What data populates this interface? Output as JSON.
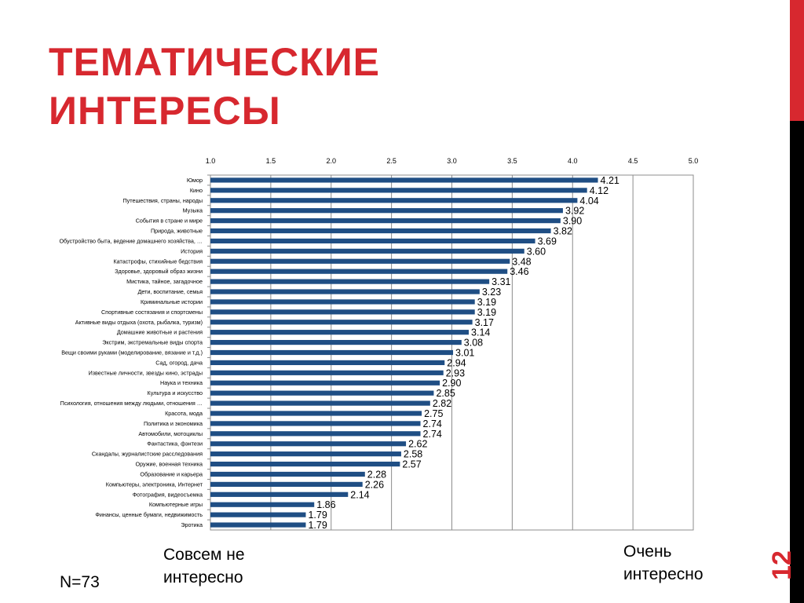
{
  "slide": {
    "title_line1": "ТЕМАТИЧЕСКИЕ",
    "title_line2": "ИНТЕРЕСЫ",
    "page_number": "12",
    "caption_left": [
      "Совсем не",
      "интересно"
    ],
    "caption_right": [
      "Очень",
      "интересно"
    ],
    "sample": "N=73"
  },
  "colors": {
    "accent": "#d7282f",
    "bar": "#1f4e84",
    "sidebar_dark": "#000000"
  },
  "chart_data": {
    "type": "bar",
    "orientation": "horizontal",
    "xlim": [
      1.0,
      5.0
    ],
    "x_ticks": [
      "1.0",
      "1.5",
      "2.0",
      "2.5",
      "3.0",
      "3.5",
      "4.0",
      "4.5",
      "5.0"
    ],
    "x_tick_values": [
      1.0,
      1.5,
      2.0,
      2.5,
      3.0,
      3.5,
      4.0,
      4.5,
      5.0
    ],
    "x_axis_position": "top",
    "grid": true,
    "categories": [
      "Юмор",
      "Кино",
      "Путешествия, страны, народы",
      "Музыка",
      "События в стране и мире",
      "Природа, животные",
      "Обустройство быта, ведение домашнего хозяйства, …",
      "История",
      "Катастрофы, стихийные бедствия",
      "Здоровье, здоровый образ жизни",
      "Мистика, тайное, загадочное",
      "Дети, воспитание, семья",
      "Криминальные истории",
      "Спортивные состязания и спортсмены",
      "Активные виды отдыха (охота, рыбалка, туризм)",
      "Домашние животные и растения",
      "Экстрим, экстремальные виды спорта",
      "Вещи своими руками (моделирование, вязание и т.д.)",
      "Сад, огород, дача",
      "Известные личности, звезды кино, эстрады",
      "Наука и техника",
      "Культура и искусство",
      "Психология, отношения между людьми, отношения …",
      "Красота, мода",
      "Политика и экономика",
      "Автомобили, мотоциклы",
      "Фантастика, фэнтези",
      "Скандалы, журналистские расследования",
      "Оружие, военная техника",
      "Образование и карьера",
      "Компьютеры, электроника, Интернет",
      "Фотография, видеосъемка",
      "Компьютерные игры",
      "Финансы, ценные бумаги, недвижимость",
      "Эротика"
    ],
    "values": [
      4.21,
      4.12,
      4.04,
      3.92,
      3.9,
      3.82,
      3.69,
      3.6,
      3.48,
      3.46,
      3.31,
      3.23,
      3.19,
      3.19,
      3.17,
      3.14,
      3.08,
      3.01,
      2.94,
      2.93,
      2.9,
      2.85,
      2.82,
      2.75,
      2.74,
      2.74,
      2.62,
      2.58,
      2.57,
      2.28,
      2.26,
      2.14,
      1.86,
      1.79,
      1.79
    ],
    "value_labels": [
      "4.21",
      "4.12",
      "4.04",
      "3.92",
      "3.90",
      "3.82",
      "3.69",
      "3.60",
      "3.48",
      "3.46",
      "3.31",
      "3.23",
      "3.19",
      "3.19",
      "3.17",
      "3.14",
      "3.08",
      "3.01",
      "2.94",
      "2.93",
      "2.90",
      "2.85",
      "2.82",
      "2.75",
      "2.74",
      "2.74",
      "2.62",
      "2.58",
      "2.57",
      "2.28",
      "2.26",
      "2.14",
      "1.86",
      "1.79",
      "1.79"
    ]
  }
}
